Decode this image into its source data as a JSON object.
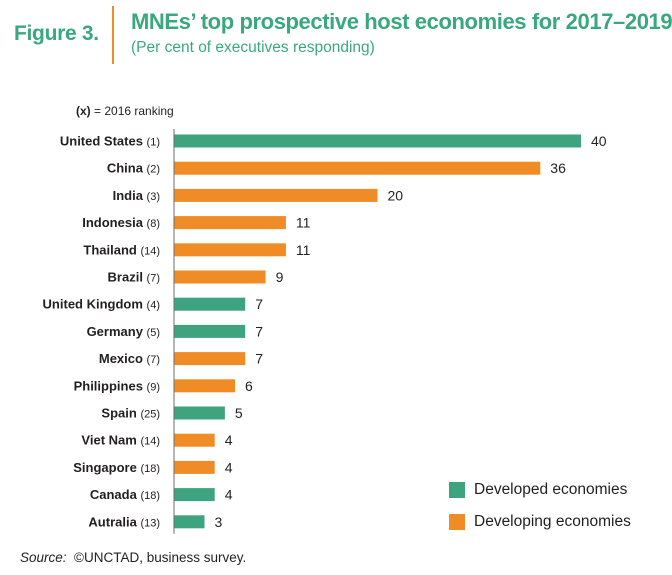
{
  "header": {
    "figure_label": "Figure 3.",
    "title": "MNEs’ top prospective host economies for 2017–2019",
    "subtitle": "(Per cent of executives responding)"
  },
  "note": {
    "prefix": "(x)",
    "text": " = 2016 ranking"
  },
  "colors": {
    "accent": "#f08c26",
    "title": "#3aa87d",
    "developed": "#3ea37f",
    "developing": "#f08c26"
  },
  "legend": [
    {
      "label": "Developed economies",
      "color": "#3ea37f"
    },
    {
      "label": "Developing economies",
      "color": "#f08c26"
    }
  ],
  "source": {
    "label": "Source:",
    "text": "©UNCTAD, business survey."
  },
  "chart_data": {
    "type": "bar",
    "orientation": "horizontal",
    "title": "MNEs’ top prospective host economies for 2017–2019",
    "subtitle": "(Per cent of executives responding)",
    "xlim": [
      0,
      40
    ],
    "grid": false,
    "legend_position": "bottom-right",
    "bars": [
      {
        "country": "United States",
        "rank": "(1)",
        "value": 40,
        "group": "Developed economies"
      },
      {
        "country": "China",
        "rank": "(2)",
        "value": 36,
        "group": "Developing economies"
      },
      {
        "country": "India",
        "rank": "(3)",
        "value": 20,
        "group": "Developing economies"
      },
      {
        "country": "Indonesia",
        "rank": "(8)",
        "value": 11,
        "group": "Developing economies"
      },
      {
        "country": "Thailand",
        "rank": "(14)",
        "value": 11,
        "group": "Developing economies"
      },
      {
        "country": "Brazil",
        "rank": "(7)",
        "value": 9,
        "group": "Developing economies"
      },
      {
        "country": "United Kingdom",
        "rank": "(4)",
        "value": 7,
        "group": "Developed economies"
      },
      {
        "country": "Germany",
        "rank": "(5)",
        "value": 7,
        "group": "Developed economies"
      },
      {
        "country": "Mexico",
        "rank": "(7)",
        "value": 7,
        "group": "Developing economies"
      },
      {
        "country": "Philippines",
        "rank": "(9)",
        "value": 6,
        "group": "Developing economies"
      },
      {
        "country": "Spain",
        "rank": "(25)",
        "value": 5,
        "group": "Developed economies"
      },
      {
        "country": "Viet Nam",
        "rank": "(14)",
        "value": 4,
        "group": "Developing economies"
      },
      {
        "country": "Singapore",
        "rank": "(18)",
        "value": 4,
        "group": "Developing economies"
      },
      {
        "country": "Canada",
        "rank": "(18)",
        "value": 4,
        "group": "Developed economies"
      },
      {
        "country": "Autralia",
        "rank": "(13)",
        "value": 3,
        "group": "Developed economies"
      }
    ]
  }
}
